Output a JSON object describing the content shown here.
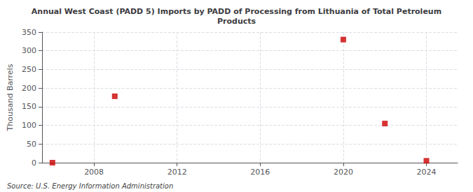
{
  "chart_data": {
    "type": "scatter",
    "title": "Annual West Coast (PADD 5) Imports by PADD of Processing from Lithuania of Total Petroleum\nProducts",
    "y_label": "Thousand Barrels",
    "annotation": "Source: U.S. Energy Information Administration",
    "x": [
      2006,
      2009,
      2020,
      2022,
      2024
    ],
    "values": [
      0,
      178,
      330,
      105,
      5
    ],
    "color": "#cc0000",
    "marker": "square",
    "xlim": [
      2005.5,
      2025.5
    ],
    "xticks": [
      2008,
      2012,
      2016,
      2020,
      2024
    ],
    "ylim": [
      0,
      350
    ],
    "yticks": [
      0,
      50,
      100,
      150,
      200,
      250,
      300,
      350
    ],
    "grid": true
  }
}
